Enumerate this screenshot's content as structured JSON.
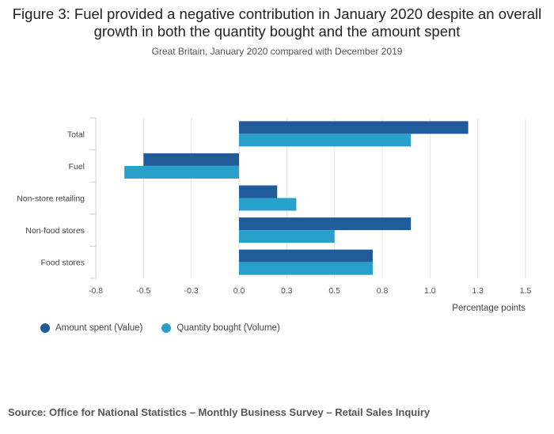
{
  "header": {
    "title": "Figure 3: Fuel provided a negative contribution in January 2020 despite an overall growth in both the quantity bought and the amount spent",
    "subtitle": "Great Britain, January 2020 compared with December 2019"
  },
  "footer": {
    "source": "Source: Office for National Statistics – Monthly Business Survey – Retail Sales Inquiry"
  },
  "colors": {
    "value": "#1f5c99",
    "volume": "#27a0cc",
    "grid": "#e4e4e4",
    "axis": "#c9d1da"
  },
  "chart_data": {
    "type": "bar",
    "orientation": "horizontal",
    "categories": [
      "Total",
      "Fuel",
      "Non-store retailing",
      "Non-food stores",
      "Food stores"
    ],
    "series": [
      {
        "name": "Amount spent (Value)",
        "values": [
          1.2,
          -0.5,
          0.2,
          0.9,
          0.7
        ]
      },
      {
        "name": "Quantity bought (Volume)",
        "values": [
          0.9,
          -0.6,
          0.3,
          0.5,
          0.7
        ]
      }
    ],
    "xlabel": "Percentage points",
    "xlim": [
      -0.75,
      1.5
    ],
    "xticks": [
      "-0.8",
      "-0.5",
      "-0.3",
      "0.0",
      "0.3",
      "0.5",
      "0.8",
      "1.0",
      "1.3",
      "1.5"
    ],
    "xtick_values": [
      -0.75,
      -0.5,
      -0.25,
      0,
      0.25,
      0.5,
      0.75,
      1.0,
      1.25,
      1.5
    ],
    "grid": true,
    "legend": "bottom-left"
  }
}
